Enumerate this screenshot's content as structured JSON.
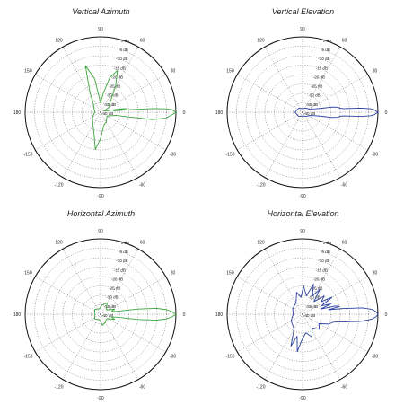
{
  "page": {
    "background": "#ffffff"
  },
  "chart_data": [
    {
      "type": "polar",
      "title": "Vertical Azimuth",
      "color": "#3aa53a",
      "angle_labels": [
        "0",
        "30",
        "60",
        "90",
        "120",
        "150",
        "180",
        "-150",
        "-120",
        "-90",
        "-60",
        "-30"
      ],
      "radial_labels": [
        "0 dB",
        "-5 dB",
        "-10 dB",
        "-15 dB",
        "-20 dB",
        "-25 dB",
        "-30 dB",
        "-35 dB",
        "-40 dB"
      ],
      "r_range_db": [
        -40,
        0
      ],
      "grid": true,
      "series": [
        {
          "points": [
            [
              0,
              0
            ],
            [
              2,
              -2
            ],
            [
              3,
              -5
            ],
            [
              4,
              -12
            ],
            [
              5,
              -24
            ],
            [
              6,
              -33
            ],
            [
              8,
              -26
            ],
            [
              10,
              -30
            ],
            [
              12,
              -36
            ],
            [
              20,
              -38
            ],
            [
              30,
              -35
            ],
            [
              45,
              -33
            ],
            [
              60,
              -24
            ],
            [
              68,
              -16
            ],
            [
              75,
              -21
            ],
            [
              82,
              -30
            ],
            [
              90,
              -35
            ],
            [
              100,
              -22
            ],
            [
              108,
              -14
            ],
            [
              118,
              -28
            ],
            [
              130,
              -34
            ],
            [
              150,
              -36
            ],
            [
              180,
              -37
            ],
            [
              210,
              -35
            ],
            [
              240,
              -32
            ],
            [
              255,
              -27
            ],
            [
              262,
              -20
            ],
            [
              270,
              -26
            ],
            [
              285,
              -33
            ],
            [
              300,
              -34
            ],
            [
              330,
              -36
            ],
            [
              348,
              -32
            ],
            [
              352,
              -12
            ],
            [
              355,
              -5
            ],
            [
              358,
              -2
            ],
            [
              360,
              0
            ]
          ]
        }
      ]
    },
    {
      "type": "polar",
      "title": "Vertical Elevation",
      "color": "#2b3f9e",
      "angle_labels": [
        "0",
        "30",
        "60",
        "90",
        "120",
        "150",
        "180",
        "-150",
        "-120",
        "-90",
        "-60",
        "-30"
      ],
      "radial_labels": [
        "0 dB",
        "-5 dB",
        "-10 dB",
        "-15 dB",
        "-20 dB",
        "-25 dB",
        "-30 dB",
        "-35 dB",
        "-40 dB"
      ],
      "r_range_db": [
        -40,
        0
      ],
      "grid": true,
      "series": [
        {
          "points": [
            [
              0,
              0
            ],
            [
              1,
              -1
            ],
            [
              2,
              -2
            ],
            [
              3,
              -4
            ],
            [
              4,
              -9
            ],
            [
              5,
              -18
            ],
            [
              6,
              -20
            ],
            [
              8,
              -21
            ],
            [
              10,
              -24
            ],
            [
              12,
              -30
            ],
            [
              15,
              -33
            ],
            [
              25,
              -36
            ],
            [
              45,
              -37
            ],
            [
              90,
              -38
            ],
            [
              135,
              -37
            ],
            [
              180,
              -36
            ],
            [
              225,
              -37
            ],
            [
              270,
              -38
            ],
            [
              315,
              -37
            ],
            [
              335,
              -36
            ],
            [
              345,
              -33
            ],
            [
              348,
              -30
            ],
            [
              350,
              -24
            ],
            [
              352,
              -21
            ],
            [
              354,
              -20
            ],
            [
              355,
              -18
            ],
            [
              356,
              -9
            ],
            [
              357,
              -4
            ],
            [
              358,
              -2
            ],
            [
              359,
              -1
            ],
            [
              360,
              0
            ]
          ]
        }
      ]
    },
    {
      "type": "polar",
      "title": "Horizontal Azimuth",
      "color": "#3aa53a",
      "angle_labels": [
        "0",
        "30",
        "60",
        "90",
        "120",
        "150",
        "180",
        "-150",
        "-120",
        "-90",
        "-60",
        "-30"
      ],
      "radial_labels": [
        "0 dB",
        "-5 dB",
        "-10 dB",
        "-15 dB",
        "-20 dB",
        "-25 dB",
        "-30 dB",
        "-35 dB",
        "-40 dB"
      ],
      "r_range_db": [
        -40,
        0
      ],
      "grid": true,
      "series": [
        {
          "points": [
            [
              0,
              0
            ],
            [
              2,
              -2
            ],
            [
              4,
              -5
            ],
            [
              6,
              -10
            ],
            [
              8,
              -20
            ],
            [
              10,
              -31
            ],
            [
              14,
              -34
            ],
            [
              20,
              -32
            ],
            [
              28,
              -35
            ],
            [
              40,
              -36
            ],
            [
              60,
              -33
            ],
            [
              80,
              -35
            ],
            [
              100,
              -37
            ],
            [
              140,
              -36
            ],
            [
              180,
              -37
            ],
            [
              220,
              -36
            ],
            [
              260,
              -37
            ],
            [
              280,
              -34
            ],
            [
              300,
              -35
            ],
            [
              320,
              -36
            ],
            [
              332,
              -35
            ],
            [
              340,
              -32
            ],
            [
              346,
              -34
            ],
            [
              350,
              -31
            ],
            [
              352,
              -20
            ],
            [
              354,
              -10
            ],
            [
              356,
              -5
            ],
            [
              358,
              -2
            ],
            [
              360,
              0
            ]
          ]
        }
      ]
    },
    {
      "type": "polar",
      "title": "Horizontal Elevation",
      "color": "#2b3f9e",
      "angle_labels": [
        "0",
        "30",
        "60",
        "90",
        "120",
        "150",
        "180",
        "-150",
        "-120",
        "-90",
        "-60",
        "-30"
      ],
      "radial_labels": [
        "0 dB",
        "-5 dB",
        "-10 dB",
        "-15 dB",
        "-20 dB",
        "-25 dB",
        "-30 dB",
        "-35 dB",
        "-40 dB"
      ],
      "r_range_db": [
        -40,
        0
      ],
      "grid": true,
      "series": [
        {
          "points": [
            [
              0,
              0
            ],
            [
              2,
              -1
            ],
            [
              4,
              -3
            ],
            [
              6,
              -8
            ],
            [
              8,
              -18
            ],
            [
              10,
              -26
            ],
            [
              12,
              -20
            ],
            [
              14,
              -22
            ],
            [
              16,
              -30
            ],
            [
              20,
              -24
            ],
            [
              24,
              -29
            ],
            [
              30,
              -22
            ],
            [
              34,
              -28
            ],
            [
              40,
              -25
            ],
            [
              48,
              -31
            ],
            [
              55,
              -24
            ],
            [
              62,
              -29
            ],
            [
              70,
              -23
            ],
            [
              78,
              -30
            ],
            [
              88,
              -25
            ],
            [
              95,
              -31
            ],
            [
              105,
              -28
            ],
            [
              120,
              -33
            ],
            [
              150,
              -34
            ],
            [
              180,
              -35
            ],
            [
              210,
              -33
            ],
            [
              240,
              -31
            ],
            [
              250,
              -22
            ],
            [
              256,
              -28
            ],
            [
              262,
              -20
            ],
            [
              268,
              -26
            ],
            [
              280,
              -30
            ],
            [
              292,
              -27
            ],
            [
              305,
              -31
            ],
            [
              318,
              -28
            ],
            [
              330,
              -30
            ],
            [
              340,
              -25
            ],
            [
              346,
              -23
            ],
            [
              350,
              -17
            ],
            [
              353,
              -9
            ],
            [
              356,
              -3
            ],
            [
              358,
              -1
            ],
            [
              360,
              0
            ]
          ]
        }
      ]
    }
  ]
}
